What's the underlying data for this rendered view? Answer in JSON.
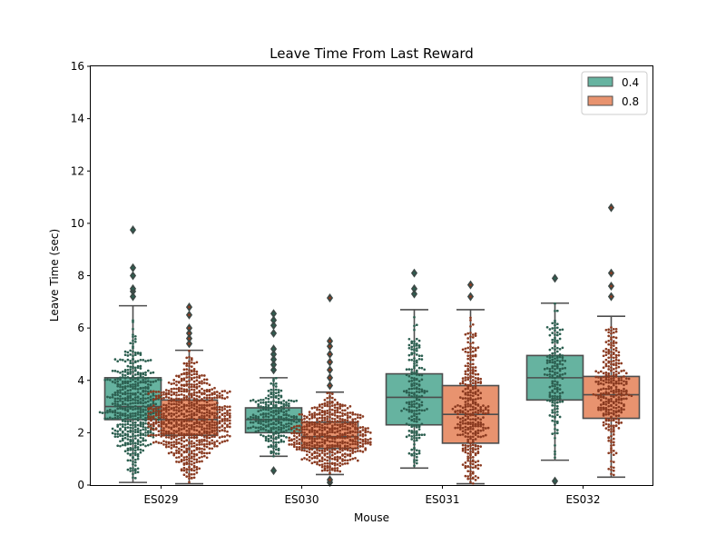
{
  "chart_data": {
    "type": "box",
    "title": "Leave Time From Last Reward",
    "xlabel": "Mouse",
    "ylabel": "Leave Time (sec)",
    "ylim": [
      0,
      16
    ],
    "yticks": [
      0,
      2,
      4,
      6,
      8,
      10,
      12,
      14,
      16
    ],
    "categories": [
      "ES029",
      "ES030",
      "ES031",
      "ES032"
    ],
    "legend_position": "top-right",
    "overlay": "swarm points",
    "series": [
      {
        "name": "0.4",
        "box_color": "#66b3a0",
        "point_color": "#2c5f50",
        "boxes": [
          {
            "whisker_low": 0.1,
            "q1": 2.5,
            "median": 3.0,
            "q3": 4.1,
            "whisker_high": 6.85,
            "outliers": [
              7.2,
              7.4,
              7.5,
              8.0,
              8.3,
              9.75
            ],
            "n": 520,
            "min": 0.1,
            "max": 6.85
          },
          {
            "whisker_low": 1.1,
            "q1": 2.0,
            "median": 2.5,
            "q3": 2.95,
            "whisker_high": 4.1,
            "outliers": [
              0.55,
              4.4,
              4.6,
              4.8,
              5.0,
              5.2,
              5.8,
              6.1,
              6.3,
              6.55
            ],
            "n": 260,
            "min": 1.1,
            "max": 4.1
          },
          {
            "whisker_low": 0.65,
            "q1": 2.3,
            "median": 3.35,
            "q3": 4.25,
            "whisker_high": 6.7,
            "outliers": [
              7.3,
              7.5,
              8.1
            ],
            "n": 200,
            "min": 0.65,
            "max": 6.7
          },
          {
            "whisker_low": 0.95,
            "q1": 3.25,
            "median": 4.1,
            "q3": 4.95,
            "whisker_high": 6.95,
            "outliers": [
              0.15,
              7.9
            ],
            "n": 170,
            "min": 0.95,
            "max": 6.95
          }
        ]
      },
      {
        "name": "0.8",
        "box_color": "#e8936f",
        "point_color": "#8a3a20",
        "boxes": [
          {
            "whisker_low": 0.05,
            "q1": 1.9,
            "median": 2.5,
            "q3": 3.25,
            "whisker_high": 5.15,
            "outliers": [
              5.4,
              5.6,
              5.8,
              6.0,
              6.5,
              6.8
            ],
            "n": 820,
            "min": 0.05,
            "max": 5.15
          },
          {
            "whisker_low": 0.4,
            "q1": 1.4,
            "median": 1.85,
            "q3": 2.4,
            "whisker_high": 3.55,
            "outliers": [
              0.1,
              0.2,
              3.8,
              4.1,
              4.4,
              4.7,
              5.0,
              5.3,
              5.5,
              7.15
            ],
            "n": 560,
            "min": 0.4,
            "max": 3.55
          },
          {
            "whisker_low": 0.05,
            "q1": 1.6,
            "median": 2.7,
            "q3": 3.8,
            "whisker_high": 6.7,
            "outliers": [
              7.2,
              7.65
            ],
            "n": 330,
            "min": 0.05,
            "max": 6.7
          },
          {
            "whisker_low": 0.3,
            "q1": 2.55,
            "median": 3.45,
            "q3": 4.15,
            "whisker_high": 6.45,
            "outliers": [
              7.2,
              7.6,
              8.1,
              10.6
            ],
            "n": 300,
            "min": 0.3,
            "max": 6.45
          }
        ]
      }
    ]
  }
}
